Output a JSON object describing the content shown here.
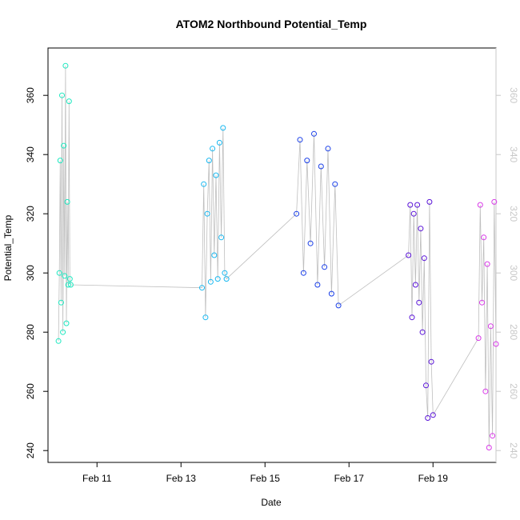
{
  "chart_data": {
    "type": "scatter",
    "title": "ATOM2 Northbound Potential_Temp",
    "xlabel": "Date",
    "ylabel": "Potential_Temp",
    "x_unit": "date",
    "xlim": [
      "2021-02-09T20:00",
      "2021-02-20T12:00"
    ],
    "ylim": [
      236,
      376
    ],
    "x_ticks": [
      "2021-02-11T00:00",
      "2021-02-13T00:00",
      "2021-02-15T00:00",
      "2021-02-17T00:00",
      "2021-02-19T00:00"
    ],
    "x_tick_labels": [
      "Feb 11",
      "Feb 13",
      "Feb 15",
      "Feb 17",
      "Feb 19"
    ],
    "y_ticks": [
      240,
      260,
      280,
      300,
      320,
      340,
      360
    ],
    "right_axis_ticks": [
      240,
      260,
      280,
      300,
      320,
      340,
      360
    ],
    "grid": false,
    "legend": "none",
    "marker": "open-circle",
    "line_color": "#bfbfbf",
    "series": [
      {
        "color": "#1de8c0",
        "points": [
          [
            "2021-02-10T02:00",
            277
          ],
          [
            "2021-02-10T02:30",
            300
          ],
          [
            "2021-02-10T03:00",
            338
          ],
          [
            "2021-02-10T03:30",
            290
          ],
          [
            "2021-02-10T04:00",
            360
          ],
          [
            "2021-02-10T04:30",
            280
          ],
          [
            "2021-02-10T05:00",
            343
          ],
          [
            "2021-02-10T05:30",
            299
          ],
          [
            "2021-02-10T06:00",
            370
          ],
          [
            "2021-02-10T06:30",
            283
          ],
          [
            "2021-02-10T07:00",
            324
          ],
          [
            "2021-02-10T07:30",
            296
          ],
          [
            "2021-02-10T08:00",
            358
          ],
          [
            "2021-02-10T08:30",
            298
          ],
          [
            "2021-02-10T09:00",
            296
          ]
        ]
      },
      {
        "color": "#1ab8f0",
        "points": [
          [
            "2021-02-13T12:00",
            295
          ],
          [
            "2021-02-13T13:00",
            330
          ],
          [
            "2021-02-13T14:00",
            285
          ],
          [
            "2021-02-13T15:00",
            320
          ],
          [
            "2021-02-13T16:00",
            338
          ],
          [
            "2021-02-13T17:00",
            297
          ],
          [
            "2021-02-13T18:00",
            342
          ],
          [
            "2021-02-13T19:00",
            306
          ],
          [
            "2021-02-13T20:00",
            333
          ],
          [
            "2021-02-13T21:00",
            298
          ],
          [
            "2021-02-13T22:00",
            344
          ],
          [
            "2021-02-13T23:00",
            312
          ],
          [
            "2021-02-14T00:00",
            349
          ],
          [
            "2021-02-14T01:00",
            300
          ],
          [
            "2021-02-14T02:00",
            298
          ]
        ]
      },
      {
        "color": "#1a3fe8",
        "points": [
          [
            "2021-02-15T18:00",
            320
          ],
          [
            "2021-02-15T20:00",
            345
          ],
          [
            "2021-02-15T22:00",
            300
          ],
          [
            "2021-02-16T00:00",
            338
          ],
          [
            "2021-02-16T02:00",
            310
          ],
          [
            "2021-02-16T04:00",
            347
          ],
          [
            "2021-02-16T06:00",
            296
          ],
          [
            "2021-02-16T08:00",
            336
          ],
          [
            "2021-02-16T10:00",
            302
          ],
          [
            "2021-02-16T12:00",
            342
          ],
          [
            "2021-02-16T14:00",
            293
          ],
          [
            "2021-02-16T16:00",
            330
          ],
          [
            "2021-02-16T18:00",
            289
          ]
        ]
      },
      {
        "color": "#5a14d8",
        "points": [
          [
            "2021-02-18T10:00",
            306
          ],
          [
            "2021-02-18T11:00",
            323
          ],
          [
            "2021-02-18T12:00",
            285
          ],
          [
            "2021-02-18T13:00",
            320
          ],
          [
            "2021-02-18T14:00",
            296
          ],
          [
            "2021-02-18T15:00",
            323
          ],
          [
            "2021-02-18T16:00",
            290
          ],
          [
            "2021-02-18T17:00",
            315
          ],
          [
            "2021-02-18T18:00",
            280
          ],
          [
            "2021-02-18T19:00",
            305
          ],
          [
            "2021-02-18T20:00",
            262
          ],
          [
            "2021-02-18T21:00",
            251
          ],
          [
            "2021-02-18T22:00",
            324
          ],
          [
            "2021-02-18T23:00",
            270
          ],
          [
            "2021-02-19T00:00",
            252
          ]
        ]
      },
      {
        "color": "#d83ae8",
        "points": [
          [
            "2021-02-20T02:00",
            278
          ],
          [
            "2021-02-20T03:00",
            323
          ],
          [
            "2021-02-20T04:00",
            290
          ],
          [
            "2021-02-20T05:00",
            312
          ],
          [
            "2021-02-20T06:00",
            260
          ],
          [
            "2021-02-20T07:00",
            303
          ],
          [
            "2021-02-20T08:00",
            241
          ],
          [
            "2021-02-20T09:00",
            282
          ],
          [
            "2021-02-20T10:00",
            245
          ],
          [
            "2021-02-20T11:00",
            324
          ],
          [
            "2021-02-20T12:00",
            276
          ]
        ]
      }
    ]
  }
}
